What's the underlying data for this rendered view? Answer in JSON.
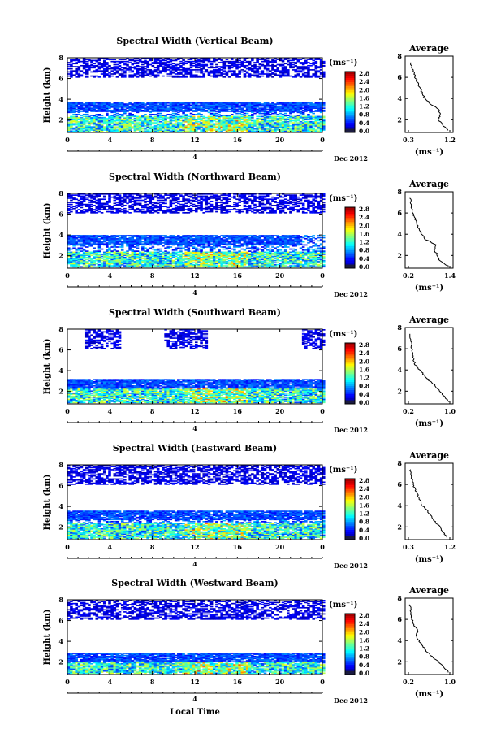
{
  "chart_data": [
    {
      "type": "heatmap",
      "title": "Spectral Width (Vertical Beam)",
      "ylabel": "Height (km)",
      "xlabel": "",
      "xlim": [
        0,
        24
      ],
      "ylim": [
        0.8,
        8
      ],
      "xticks": [
        "0",
        "4",
        "8",
        "12",
        "16",
        "20",
        "0"
      ],
      "yticks": [
        "2",
        "4",
        "6",
        "8"
      ],
      "date_marker": "4",
      "date_label": "Dec 2012",
      "colorbar": {
        "label": "(ms⁻¹)",
        "ticks": [
          "0.0",
          "0.4",
          "0.8",
          "1.2",
          "1.6",
          "2.0",
          "2.4",
          "2.8"
        ],
        "min": 0,
        "max": 2.8
      },
      "profile": {
        "title": "Average",
        "xticks": [
          "0.3",
          "1.2"
        ],
        "xlim": [
          0.3,
          1.2
        ],
        "xlabel": "(ms⁻¹)",
        "yticks": [
          "2",
          "4",
          "6",
          "8"
        ],
        "ylim": [
          0.8,
          8
        ],
        "height_km": [
          1.0,
          1.5,
          2.0,
          2.5,
          3.0,
          3.5,
          4.0,
          4.5,
          5.0,
          5.5,
          6.0,
          6.5,
          7.0,
          7.5
        ],
        "value": [
          1.18,
          1.05,
          0.95,
          1.0,
          0.95,
          0.78,
          0.65,
          0.6,
          0.55,
          0.5,
          0.45,
          0.42,
          0.36,
          0.35
        ]
      }
    },
    {
      "type": "heatmap",
      "title": "Spectral Width (Northward Beam)",
      "ylabel": "Height (km)",
      "xlabel": "",
      "xlim": [
        0,
        24
      ],
      "ylim": [
        0.8,
        8
      ],
      "xticks": [
        "0",
        "4",
        "8",
        "12",
        "16",
        "20",
        "0"
      ],
      "yticks": [
        "2",
        "4",
        "6",
        "8"
      ],
      "date_marker": "4",
      "date_label": "Dec 2012",
      "colorbar": {
        "label": "(ms⁻¹)",
        "ticks": [
          "0.0",
          "0.4",
          "0.8",
          "1.2",
          "1.6",
          "2.0",
          "2.4",
          "2.8"
        ],
        "min": 0,
        "max": 2.8
      },
      "profile": {
        "title": "Average",
        "xticks": [
          "0.2",
          "1.4"
        ],
        "xlim": [
          0.2,
          1.4
        ],
        "xlabel": "(ms⁻¹)",
        "yticks": [
          "2",
          "4",
          "6",
          "8"
        ],
        "ylim": [
          0.8,
          8
        ],
        "height_km": [
          1.0,
          1.5,
          2.0,
          2.5,
          3.0,
          3.5,
          4.0,
          4.5,
          5.0,
          5.5,
          6.0,
          6.5,
          7.0,
          7.5
        ],
        "value": [
          1.35,
          1.1,
          1.05,
          0.95,
          1.0,
          0.7,
          0.6,
          0.5,
          0.45,
          0.38,
          0.33,
          0.3,
          0.27,
          0.25
        ]
      }
    },
    {
      "type": "heatmap",
      "title": "Spectral Width (Southward Beam)",
      "ylabel": "Height (km)",
      "xlabel": "",
      "xlim": [
        0,
        24
      ],
      "ylim": [
        0.8,
        8
      ],
      "xticks": [
        "0",
        "4",
        "8",
        "12",
        "16",
        "20",
        "0"
      ],
      "yticks": [
        "2",
        "4",
        "6",
        "8"
      ],
      "date_marker": "4",
      "date_label": "Dec 2012",
      "colorbar": {
        "label": "(ms⁻¹)",
        "ticks": [
          "0.0",
          "0.4",
          "0.8",
          "1.2",
          "1.6",
          "2.0",
          "2.4",
          "2.8"
        ],
        "min": 0,
        "max": 2.8
      },
      "profile": {
        "title": "Average",
        "xticks": [
          "0.2",
          "1.0"
        ],
        "xlim": [
          0.2,
          1.0
        ],
        "xlabel": "(ms⁻¹)",
        "yticks": [
          "2",
          "4",
          "6",
          "8"
        ],
        "ylim": [
          0.8,
          8
        ],
        "height_km": [
          1.0,
          1.5,
          2.0,
          2.5,
          3.0,
          3.5,
          4.0,
          4.5,
          5.0,
          5.5,
          6.0,
          6.5,
          7.0,
          7.5
        ],
        "value": [
          0.98,
          0.9,
          0.8,
          0.72,
          0.6,
          0.5,
          0.42,
          0.33,
          0.3,
          0.28,
          0.26,
          0.25,
          0.24,
          0.23
        ]
      }
    },
    {
      "type": "heatmap",
      "title": "Spectral Width (Eastward Beam)",
      "ylabel": "Height (km)",
      "xlabel": "",
      "xlim": [
        0,
        24
      ],
      "ylim": [
        0.8,
        8
      ],
      "xticks": [
        "0",
        "4",
        "8",
        "12",
        "16",
        "20",
        "0"
      ],
      "yticks": [
        "2",
        "4",
        "6",
        "8"
      ],
      "date_marker": "4",
      "date_label": "Dec 2012",
      "colorbar": {
        "label": "(ms⁻¹)",
        "ticks": [
          "0.0",
          "0.4",
          "0.8",
          "1.2",
          "1.6",
          "2.0",
          "2.4",
          "2.8"
        ],
        "min": 0,
        "max": 2.8
      },
      "profile": {
        "title": "Average",
        "xticks": [
          "0.3",
          "1.2"
        ],
        "xlim": [
          0.3,
          1.2
        ],
        "xlabel": "(ms⁻¹)",
        "yticks": [
          "2",
          "4",
          "6",
          "8"
        ],
        "ylim": [
          0.8,
          8
        ],
        "height_km": [
          1.0,
          1.5,
          2.0,
          2.5,
          3.0,
          3.5,
          4.0,
          4.5,
          5.0,
          5.5,
          6.0,
          6.5,
          7.0,
          7.5
        ],
        "value": [
          1.15,
          1.05,
          0.98,
          0.88,
          0.8,
          0.72,
          0.6,
          0.55,
          0.5,
          0.45,
          0.4,
          0.38,
          0.35,
          0.33
        ]
      }
    },
    {
      "type": "heatmap",
      "title": "Spectral Width (Westward Beam)",
      "ylabel": "Height (km)",
      "xlabel": "Local Time",
      "xlim": [
        0,
        24
      ],
      "ylim": [
        0.8,
        8
      ],
      "xticks": [
        "0",
        "4",
        "8",
        "12",
        "16",
        "20",
        "0"
      ],
      "yticks": [
        "2",
        "4",
        "6",
        "8"
      ],
      "date_marker": "4",
      "date_label": "Dec 2012",
      "colorbar": {
        "label": "(ms⁻¹)",
        "ticks": [
          "0.0",
          "0.4",
          "0.8",
          "1.2",
          "1.6",
          "2.0",
          "2.4",
          "2.8"
        ],
        "min": 0,
        "max": 2.8
      },
      "profile": {
        "title": "Average",
        "xticks": [
          "0.2",
          "1.0"
        ],
        "xlim": [
          0.2,
          1.0
        ],
        "xlabel": "(ms⁻¹)",
        "yticks": [
          "2",
          "4",
          "6",
          "8"
        ],
        "ylim": [
          0.8,
          8
        ],
        "height_km": [
          1.0,
          1.5,
          2.0,
          2.5,
          3.0,
          3.5,
          4.0,
          4.5,
          5.0,
          5.5,
          6.0,
          6.5,
          7.0,
          7.5
        ],
        "value": [
          0.98,
          0.88,
          0.78,
          0.65,
          0.55,
          0.48,
          0.4,
          0.35,
          0.38,
          0.3,
          0.27,
          0.25,
          0.24,
          0.23
        ]
      }
    }
  ]
}
